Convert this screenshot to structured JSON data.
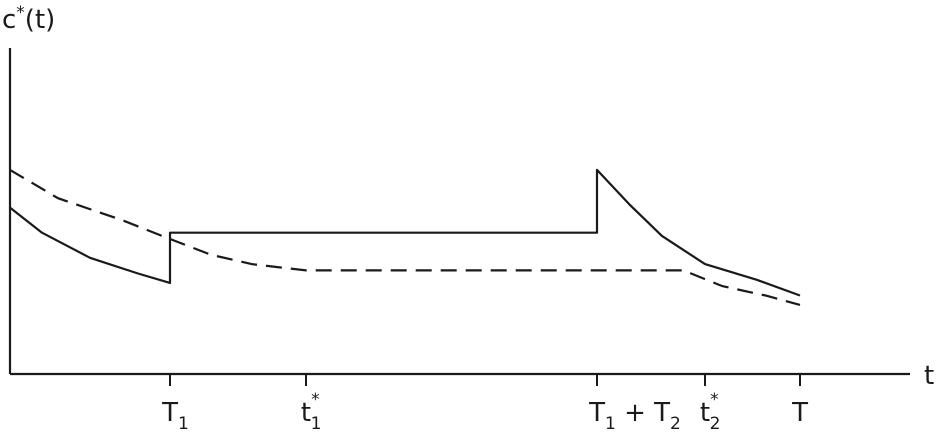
{
  "chart_data": {
    "type": "line",
    "ylabel": {
      "base": "c",
      "sup": "*",
      "arg": "(t)"
    },
    "xlabel": "t",
    "x_ticks": [
      {
        "id": "T1",
        "x": 1.0,
        "base": "T",
        "sub": "1",
        "sup": ""
      },
      {
        "id": "t1star",
        "x": 2.0,
        "base": "t",
        "sub": "1",
        "sup": "*"
      },
      {
        "id": "T1plusT2",
        "x": 5.0,
        "base": "T",
        "sub": "1",
        "sup": "",
        "tail": "+ T",
        "tail_sub": "2"
      },
      {
        "id": "t2star",
        "x": 6.0,
        "base": "t",
        "sub": "2",
        "sup": "*"
      },
      {
        "id": "T",
        "x": 6.55,
        "base": "T",
        "sub": "",
        "sup": ""
      }
    ],
    "xlim": [
      0,
      7.8
    ],
    "ylim": [
      0,
      1.0
    ],
    "grid": false,
    "series": [
      {
        "style": "solid",
        "points": [
          [
            0.0,
            0.53
          ],
          [
            0.2,
            0.45
          ],
          [
            0.5,
            0.37
          ],
          [
            0.8,
            0.32
          ],
          [
            1.0,
            0.29
          ],
          [
            1.0,
            0.45
          ],
          [
            5.0,
            0.45
          ],
          [
            5.0,
            0.65
          ],
          [
            5.3,
            0.54
          ],
          [
            5.6,
            0.44
          ],
          [
            6.0,
            0.35
          ],
          [
            6.3,
            0.3
          ],
          [
            6.55,
            0.25
          ]
        ]
      },
      {
        "style": "dashed",
        "points": [
          [
            0.0,
            0.65
          ],
          [
            0.3,
            0.56
          ],
          [
            0.7,
            0.49
          ],
          [
            1.0,
            0.43
          ],
          [
            1.3,
            0.38
          ],
          [
            1.6,
            0.35
          ],
          [
            2.0,
            0.33
          ],
          [
            3.0,
            0.33
          ],
          [
            4.0,
            0.33
          ],
          [
            5.0,
            0.33
          ],
          [
            5.8,
            0.33
          ],
          [
            6.1,
            0.28
          ],
          [
            6.35,
            0.25
          ],
          [
            6.55,
            0.22
          ]
        ]
      }
    ]
  }
}
